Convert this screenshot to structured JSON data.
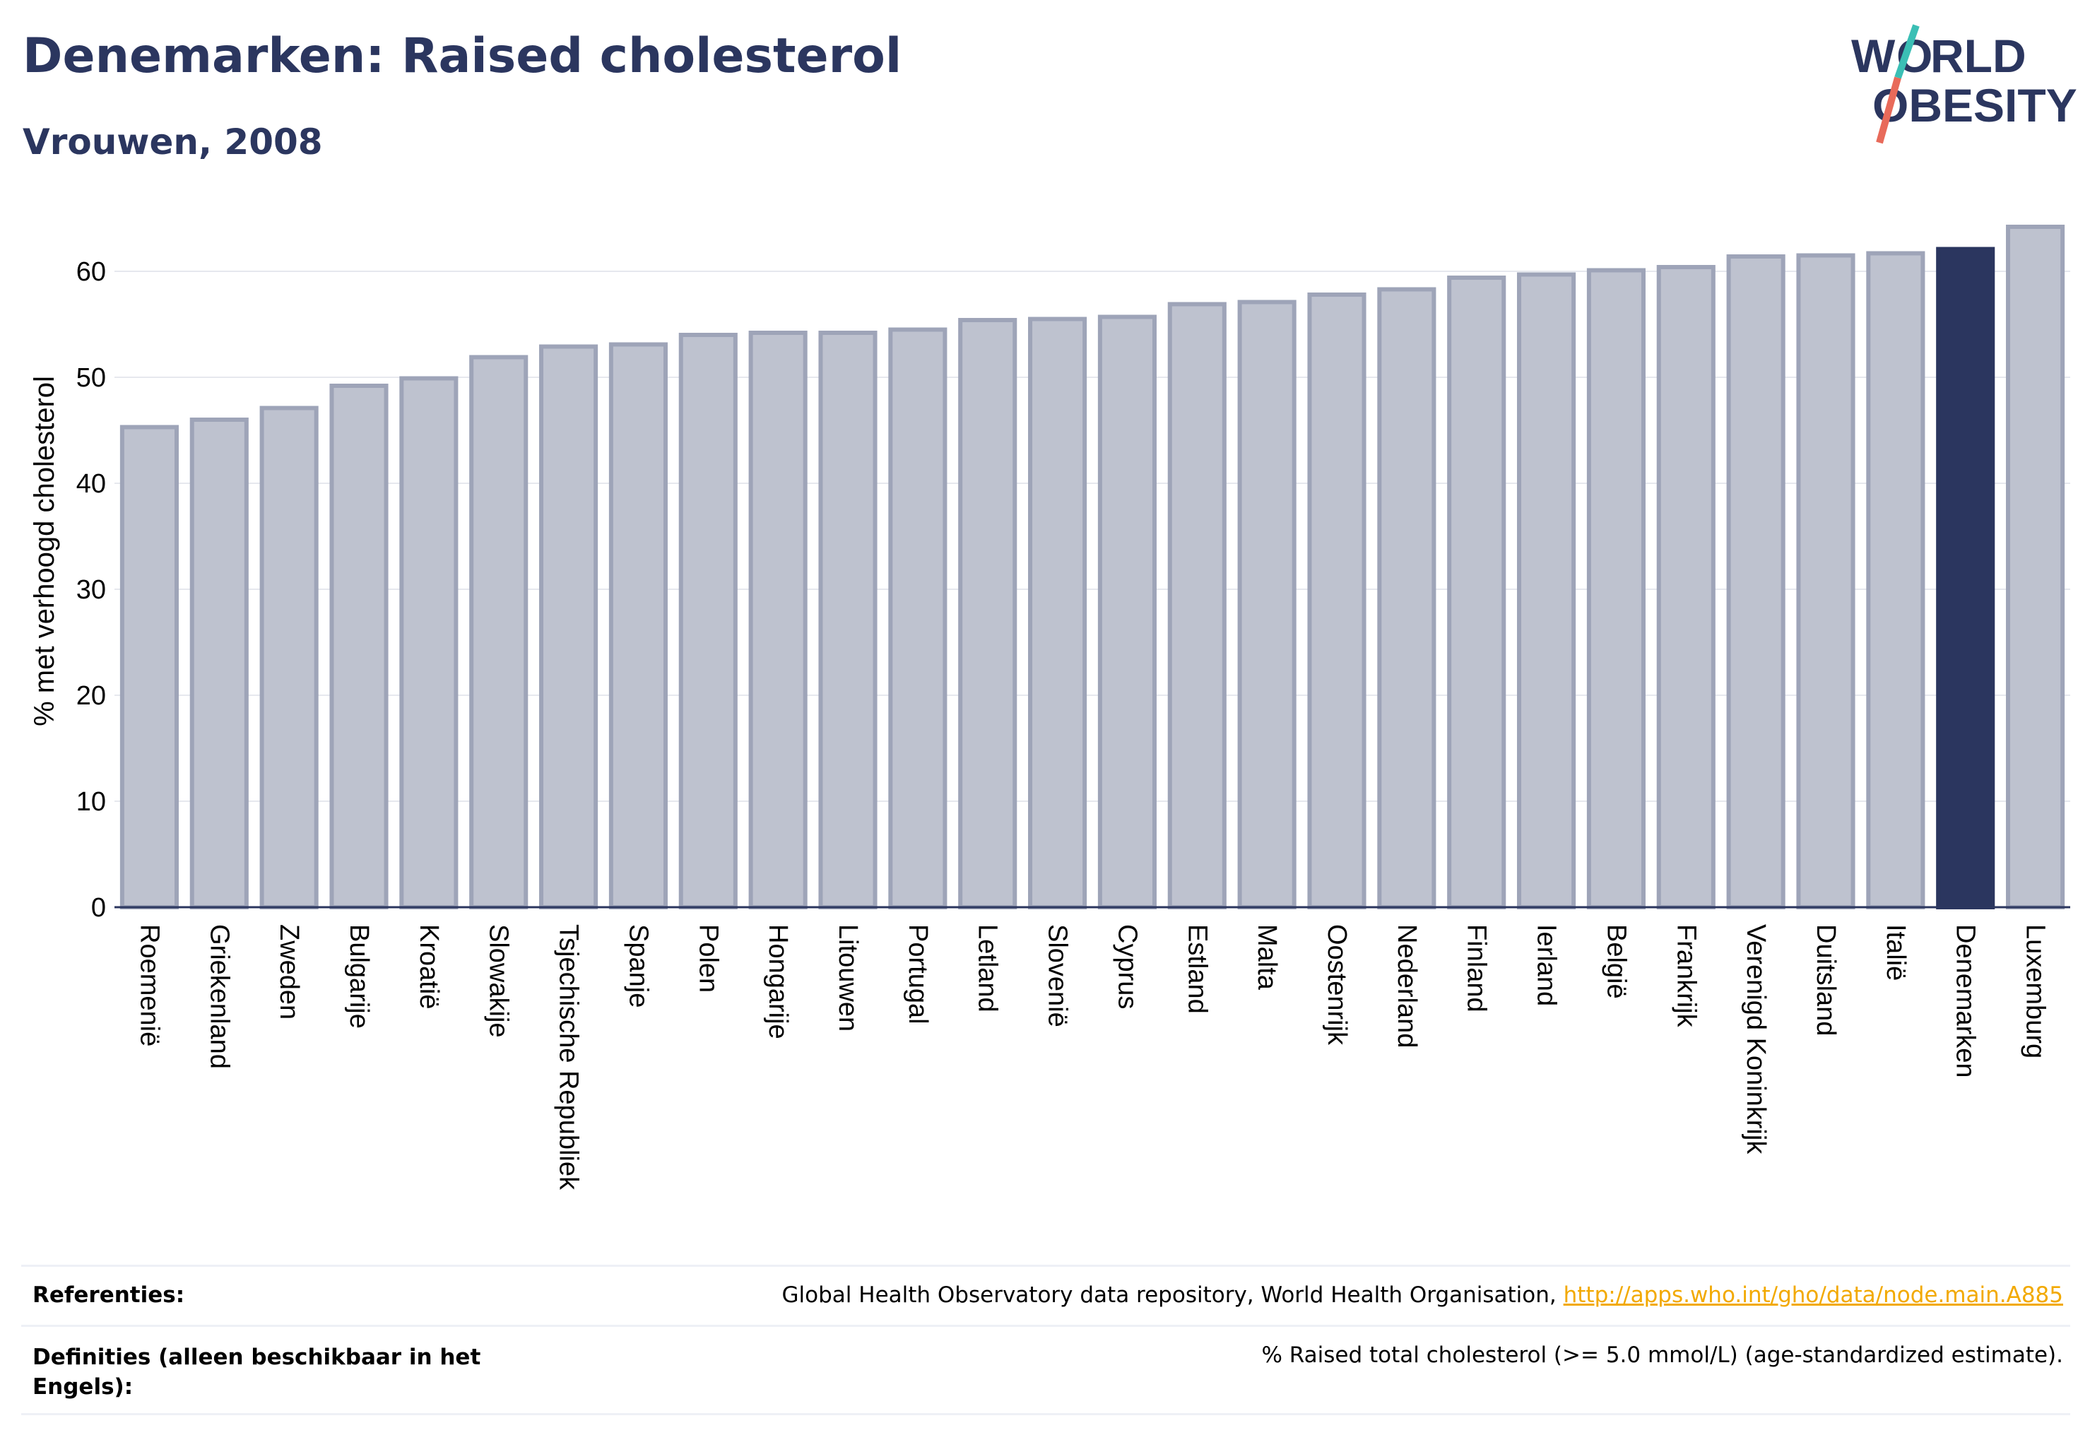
{
  "header": {
    "title": "Denemarken: Raised cholesterol",
    "subtitle": "Vrouwen, 2008"
  },
  "logo": {
    "line1": "WORLD",
    "line2": "OBESITY"
  },
  "colors": {
    "bar": "#bec2cf",
    "bar_stroke": "#9ea4b8",
    "highlight": "#2b365f",
    "link": "#f2a900",
    "grid": "#e6e8ee"
  },
  "chart_data": {
    "type": "bar",
    "ylabel": "% met verhoogd cholesterol",
    "ylim": [
      0,
      65
    ],
    "yticks": [
      0,
      10,
      20,
      30,
      40,
      50,
      60
    ],
    "grid": true,
    "highlight": "Denemarken",
    "categories": [
      "Roemenië",
      "Griekenland",
      "Zweden",
      "Bulgarije",
      "Kroatië",
      "Slowakije",
      "Tsjechische Republiek",
      "Spanje",
      "Polen",
      "Hongarije",
      "Litouwen",
      "Portugal",
      "Letland",
      "Slovenië",
      "Cyprus",
      "Estland",
      "Malta",
      "Oostenrijk",
      "Nederland",
      "Finland",
      "Ierland",
      "België",
      "Frankrijk",
      "Verenigd Koninkrijk",
      "Duitsland",
      "Italië",
      "Denemarken",
      "Luxemburg"
    ],
    "values": [
      45.3,
      46.0,
      47.1,
      49.2,
      49.9,
      51.9,
      52.9,
      53.1,
      54.0,
      54.2,
      54.2,
      54.5,
      55.4,
      55.5,
      55.7,
      56.9,
      57.1,
      57.8,
      58.3,
      59.4,
      59.7,
      60.1,
      60.4,
      61.4,
      61.5,
      61.7,
      62.1,
      64.2
    ]
  },
  "references": {
    "ref_label": "Referenties:",
    "ref_text": "Global Health Observatory data repository, World Health Organisation, ",
    "ref_link": "http://apps.who.int/gho/data/node.main.A885",
    "def_label": "Definities (alleen beschikbaar in het Engels):",
    "def_text": "% Raised total cholesterol (>= 5.0 mmol/L) (age-standardized estimate)."
  }
}
